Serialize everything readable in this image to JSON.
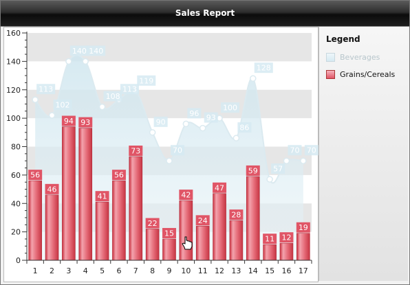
{
  "title": "Sales Report",
  "legend": {
    "title": "Legend",
    "items": [
      {
        "label": "Beverages",
        "color": "#d6eaf2",
        "text_color": "#b8c6cc"
      },
      {
        "label": "Grains/Cereals",
        "color": "#e05566",
        "text_color": "#111111"
      }
    ]
  },
  "chart_data": {
    "type": "bar",
    "title": "Sales Report",
    "categories": [
      "1",
      "2",
      "3",
      "4",
      "5",
      "6",
      "7",
      "8",
      "9",
      "10",
      "11",
      "12",
      "13",
      "14",
      "15",
      "16",
      "17"
    ],
    "ylim": [
      0,
      160
    ],
    "yticks": [
      0,
      20,
      40,
      60,
      80,
      100,
      120,
      140,
      160
    ],
    "series": [
      {
        "name": "Beverages",
        "type": "area",
        "color": "#d6eaf2",
        "values": [
          113,
          102,
          140,
          140,
          108,
          113,
          119,
          90,
          70,
          96,
          93,
          100,
          86,
          128,
          57,
          70,
          70
        ]
      },
      {
        "name": "Grains/Cereals",
        "type": "bar",
        "color": "#e05566",
        "values": [
          56,
          46,
          94,
          93,
          41,
          56,
          73,
          22,
          15,
          42,
          24,
          47,
          28,
          59,
          11,
          12,
          19
        ]
      }
    ],
    "grid_bands": true
  }
}
